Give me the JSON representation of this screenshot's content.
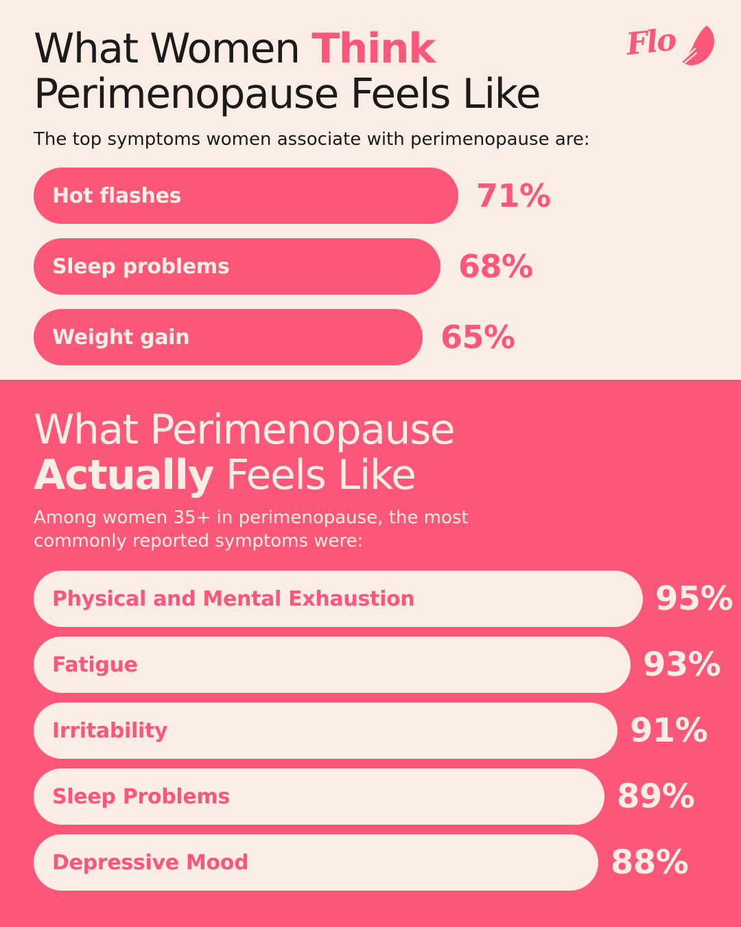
{
  "colors": {
    "pink": "#FB5778",
    "cream": "#FAEDE6",
    "dark": "#1B1B1B"
  },
  "logo": {
    "text": "Flo",
    "icon": "feather-icon"
  },
  "top_section": {
    "title_prefix": "What Women ",
    "title_highlight": "Think",
    "title_line2": "Perimenopause Feels Like",
    "subtitle": "The top symptoms women associate with perimenopause are:",
    "bars": [
      {
        "label": "Hot flashes",
        "value": 71,
        "display": "71%"
      },
      {
        "label": "Sleep problems",
        "value": 68,
        "display": "68%"
      },
      {
        "label": "Weight gain",
        "value": 65,
        "display": "65%"
      }
    ]
  },
  "bottom_section": {
    "title_line1": "What Perimenopause",
    "title_bold": "Actually",
    "title_rest": " Feels Like",
    "subtitle_line1": "Among women 35+ in perimenopause, the most",
    "subtitle_line2": "commonly reported symptoms were:",
    "bars": [
      {
        "label": "Physical and Mental Exhaustion",
        "value": 95,
        "display": "95%"
      },
      {
        "label": "Fatigue",
        "value": 93,
        "display": "93%"
      },
      {
        "label": "Irritability",
        "value": 91,
        "display": "91%"
      },
      {
        "label": "Sleep Problems",
        "value": 89,
        "display": "89%"
      },
      {
        "label": "Depressive Mood",
        "value": 88,
        "display": "88%"
      }
    ]
  },
  "chart_data": [
    {
      "type": "bar",
      "orientation": "horizontal",
      "title": "What Women Think Perimenopause Feels Like",
      "subtitle": "The top symptoms women associate with perimenopause are:",
      "categories": [
        "Hot flashes",
        "Sleep problems",
        "Weight gain"
      ],
      "values": [
        71,
        68,
        65
      ],
      "unit": "%",
      "xlim": [
        0,
        100
      ],
      "bar_color": "#FB5778",
      "background": "#FAEDE6",
      "value_labels": [
        "71%",
        "68%",
        "65%"
      ]
    },
    {
      "type": "bar",
      "orientation": "horizontal",
      "title": "What Perimenopause Actually Feels Like",
      "subtitle": "Among women 35+ in perimenopause, the most commonly reported symptoms were:",
      "categories": [
        "Physical and Mental Exhaustion",
        "Fatigue",
        "Irritability",
        "Sleep Problems",
        "Depressive Mood"
      ],
      "values": [
        95,
        93,
        91,
        89,
        88
      ],
      "unit": "%",
      "xlim": [
        0,
        100
      ],
      "bar_color": "#FAEDE6",
      "background": "#FB5778",
      "value_labels": [
        "95%",
        "93%",
        "91%",
        "89%",
        "88%"
      ]
    }
  ]
}
